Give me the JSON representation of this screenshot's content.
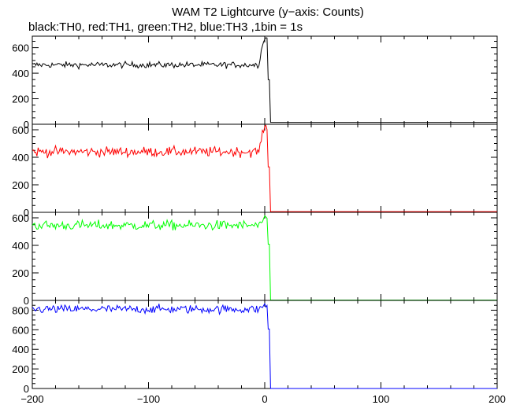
{
  "chart_data": {
    "type": "line",
    "title": "WAM T2 Lightcurve (y−axis: Counts)",
    "subtitle": "black:TH0, red:TH1, green:TH2, blue:TH3 ,1bin = 1s",
    "xlim": [
      -200,
      200
    ],
    "x_ticks": [
      -200,
      -100,
      0,
      100,
      200
    ],
    "x_tick_labels": [
      "−200",
      "−100",
      "0",
      "100",
      "200"
    ],
    "bin_seconds": 1,
    "grid": false,
    "panels": [
      {
        "name": "TH0",
        "color": "#000000",
        "ylim": [
          0,
          690
        ],
        "y_ticks": [
          0,
          200,
          400,
          600
        ],
        "level_before": 465,
        "noise": 12,
        "peak": 680,
        "level_after": 15,
        "drop_at": 5
      },
      {
        "name": "TH1",
        "color": "#ff0000",
        "ylim": [
          0,
          640
        ],
        "y_ticks": [
          0,
          200,
          400,
          600
        ],
        "level_before": 440,
        "noise": 18,
        "peak": 620,
        "level_after": 5,
        "drop_at": 5
      },
      {
        "name": "TH2",
        "color": "#00ff00",
        "ylim": [
          0,
          640
        ],
        "y_ticks": [
          0,
          200,
          400,
          600
        ],
        "level_before": 545,
        "noise": 18,
        "peak": 590,
        "level_after": 2,
        "drop_at": 5
      },
      {
        "name": "TH3",
        "color": "#0000ff",
        "ylim": [
          0,
          900
        ],
        "y_ticks": [
          0,
          200,
          400,
          600,
          800
        ],
        "level_before": 810,
        "noise": 22,
        "peak": 850,
        "level_after": 0,
        "drop_at": 5
      }
    ]
  }
}
